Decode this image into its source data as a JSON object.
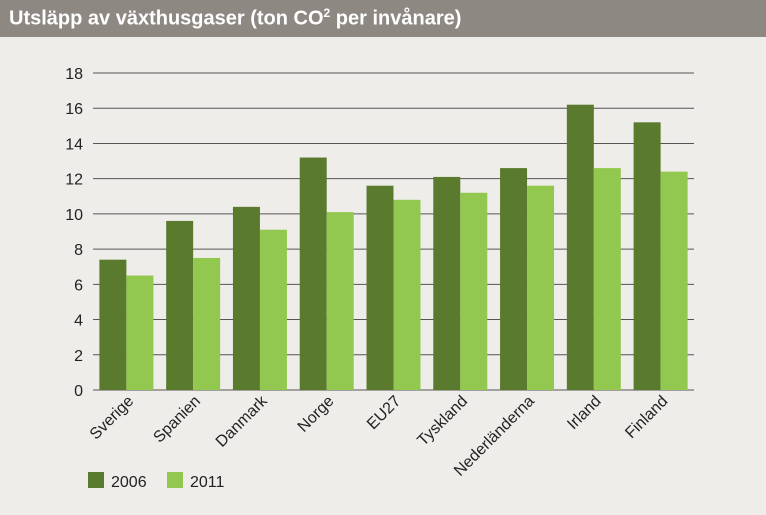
{
  "title": {
    "main": "Utsläpp av växthusgaser (ton CO",
    "sup": "2",
    "rest": " per invånare)"
  },
  "colors": {
    "series_2006": "#5a7a2e",
    "series_2011": "#92c84f",
    "grid": "#555555",
    "background": "#efedea",
    "title_bar": "#8e8882"
  },
  "chart_data": {
    "type": "bar",
    "title": "Utsläpp av växthusgaser (ton CO2 per invånare)",
    "categories": [
      "Sverige",
      "Spanien",
      "Danmark",
      "Norge",
      "EU27",
      "Tyskland",
      "Nederländerna",
      "Irland",
      "Finland"
    ],
    "series": [
      {
        "name": "2006",
        "values": [
          7.4,
          9.6,
          10.4,
          13.2,
          11.6,
          12.1,
          12.6,
          16.2,
          15.2
        ]
      },
      {
        "name": "2011",
        "values": [
          6.5,
          7.5,
          9.1,
          10.1,
          10.8,
          11.2,
          11.6,
          12.6,
          12.4
        ]
      }
    ],
    "yticks": [
      0,
      2,
      4,
      6,
      8,
      10,
      12,
      14,
      16,
      18
    ],
    "ylim": [
      0,
      18
    ],
    "grid": true,
    "legend_position": "bottom-left"
  }
}
